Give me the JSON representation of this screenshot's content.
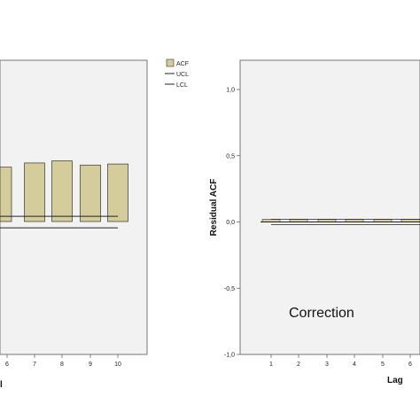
{
  "chart_data": [
    {
      "type": "bar",
      "categories": [
        "6",
        "7",
        "8",
        "9",
        "10"
      ],
      "values": [
        0.52,
        0.56,
        0.58,
        0.54,
        0.55
      ],
      "series": [
        {
          "name": "ACF",
          "values": [
            0.52,
            0.56,
            0.58,
            0.54,
            0.55
          ]
        },
        {
          "name": "UCL",
          "values": [
            0.05,
            0.05,
            0.05,
            0.05,
            0.05
          ]
        },
        {
          "name": "LCL",
          "values": [
            -0.06,
            -0.06,
            -0.06,
            -0.06,
            -0.06
          ]
        }
      ],
      "xlabel_partial": "l",
      "ylabel": "",
      "legend": [
        "ACF",
        "UCL",
        "LCL"
      ],
      "legend_position": "top-right",
      "colors": {
        "bar_fill": "#d4cc9b",
        "bar_stroke": "#333333",
        "plot_bg": "#f2f2f2",
        "line": "#222222"
      }
    },
    {
      "type": "bar",
      "categories": [
        "1",
        "2",
        "3",
        "4",
        "5",
        "6"
      ],
      "values": [
        0.02,
        0.02,
        0.02,
        0.02,
        0.02,
        0.02
      ],
      "series": [
        {
          "name": "ACF",
          "values": [
            0.02,
            0.02,
            0.02,
            0.02,
            0.02,
            0.02
          ]
        },
        {
          "name": "UCL",
          "values": [
            0.02,
            0.02,
            0.02,
            0.02,
            0.02,
            0.02
          ]
        },
        {
          "name": "LCL",
          "values": [
            -0.02,
            -0.02,
            -0.02,
            -0.02,
            -0.02,
            -0.02
          ]
        }
      ],
      "xlabel": "Lag",
      "ylabel": "Residual ACF",
      "ylim": [
        -1.0,
        1.0
      ],
      "yticks": [
        "-1,0",
        "-0,5",
        "0,0",
        "0,5",
        "1,0"
      ],
      "annotation": "Correction",
      "colors": {
        "bar_fill": "#d4cc9b",
        "bar_stroke": "#333333",
        "plot_bg": "#f2f2f2",
        "line": "#222222"
      }
    }
  ]
}
